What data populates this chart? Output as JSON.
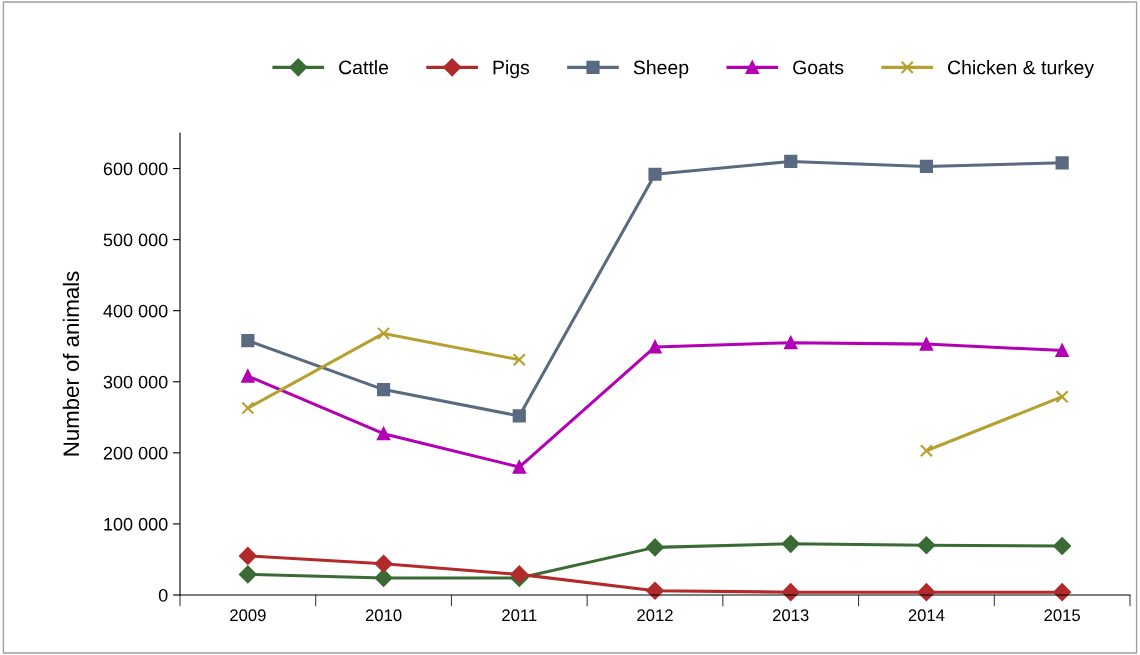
{
  "chart_data": {
    "type": "line",
    "ylabel": "Number of animals",
    "categories": [
      "2009",
      "2010",
      "2011",
      "2012",
      "2013",
      "2014",
      "2015"
    ],
    "series": [
      {
        "name": "Cattle",
        "color": "#3a6b35",
        "marker": "diamond",
        "values": [
          29000,
          24000,
          24000,
          67000,
          72000,
          70000,
          69000
        ]
      },
      {
        "name": "Pigs",
        "color": "#b22a2a",
        "marker": "diamond",
        "values": [
          55000,
          44000,
          29000,
          6000,
          4000,
          4000,
          4000
        ]
      },
      {
        "name": "Sheep",
        "color": "#5a6a80",
        "marker": "square",
        "values": [
          358000,
          289000,
          252000,
          592000,
          610000,
          603000,
          608000
        ]
      },
      {
        "name": "Goats",
        "color": "#b400b4",
        "marker": "triangle",
        "values": [
          308000,
          227000,
          180000,
          349000,
          355000,
          353000,
          344000
        ]
      },
      {
        "name": "Chicken & turkey",
        "color": "#b5a030",
        "marker": "cross",
        "values": [
          263000,
          368000,
          331000,
          null,
          null,
          203000,
          279000
        ]
      }
    ],
    "ylim": [
      0,
      650000
    ],
    "yticks": [
      {
        "value": 0,
        "label": "0"
      },
      {
        "value": 100000,
        "label": "100 000"
      },
      {
        "value": 200000,
        "label": "200 000"
      },
      {
        "value": 300000,
        "label": "300 000"
      },
      {
        "value": 400000,
        "label": "400 000"
      },
      {
        "value": 500000,
        "label": "500 000"
      },
      {
        "value": 600000,
        "label": "600 000"
      }
    ],
    "grid": false,
    "legend": "top",
    "line_style": "solid"
  }
}
